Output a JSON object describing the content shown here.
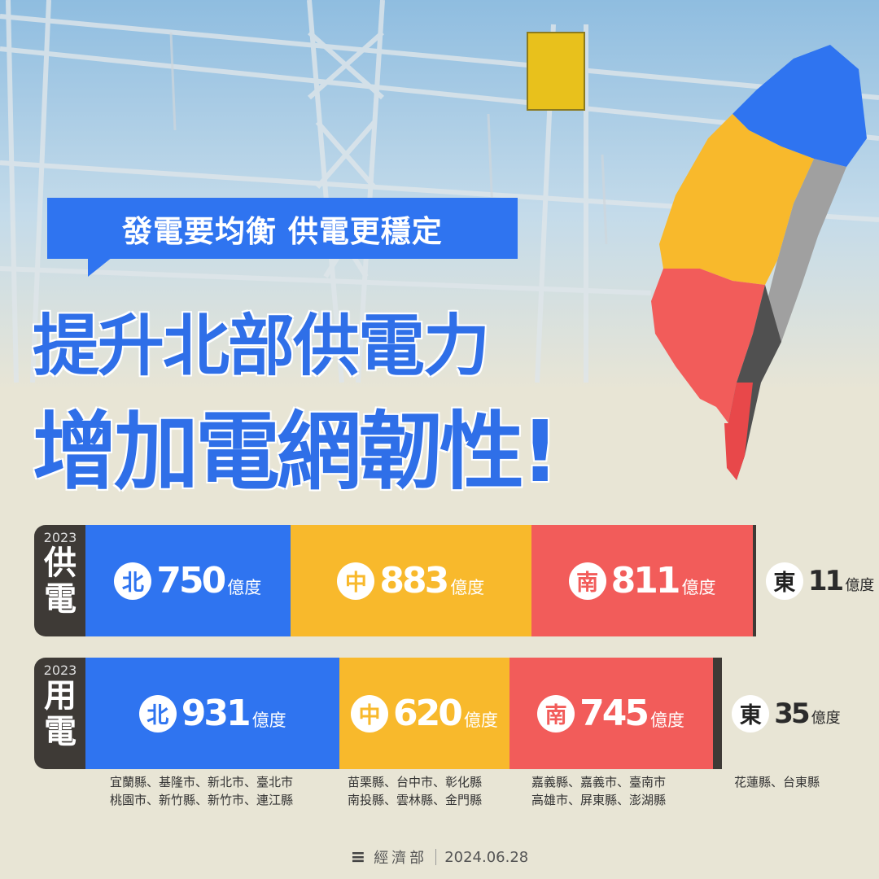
{
  "headline": {
    "bubble": "發電要均衡 供電更穩定",
    "line1": "提升北部供電力",
    "line2": "增加電網韌性!"
  },
  "colors": {
    "north": "#2f74f0",
    "central": "#f8b92c",
    "south": "#f25c5a",
    "east": "#3e3a36",
    "headline": "#2f6fe8",
    "background": "#e8e5d5"
  },
  "chart_data": {
    "type": "bar",
    "orientation": "horizontal-stacked",
    "unit": "億度",
    "categories": [
      "北",
      "中",
      "南",
      "東"
    ],
    "series": [
      {
        "name": "供電",
        "year": "2023",
        "values": [
          750,
          883,
          811,
          11
        ]
      },
      {
        "name": "用電",
        "year": "2023",
        "values": [
          931,
          620,
          745,
          35
        ]
      }
    ]
  },
  "regions": [
    {
      "badge": "北",
      "lines": [
        "宜蘭縣、基隆市、新北市、臺北市",
        "桃園市、新竹縣、新竹市、連江縣"
      ]
    },
    {
      "badge": "中",
      "lines": [
        "苗栗縣、台中市、彰化縣",
        "南投縣、雲林縣、金門縣"
      ]
    },
    {
      "badge": "南",
      "lines": [
        "嘉義縣、嘉義市、臺南市",
        "高雄市、屏東縣、澎湖縣"
      ]
    },
    {
      "badge": "東",
      "lines": [
        "花蓮縣、台東縣"
      ]
    }
  ],
  "footer": {
    "logo_icon": "ministry-logo-icon",
    "org": "經濟部",
    "date": "2024.06.28"
  }
}
